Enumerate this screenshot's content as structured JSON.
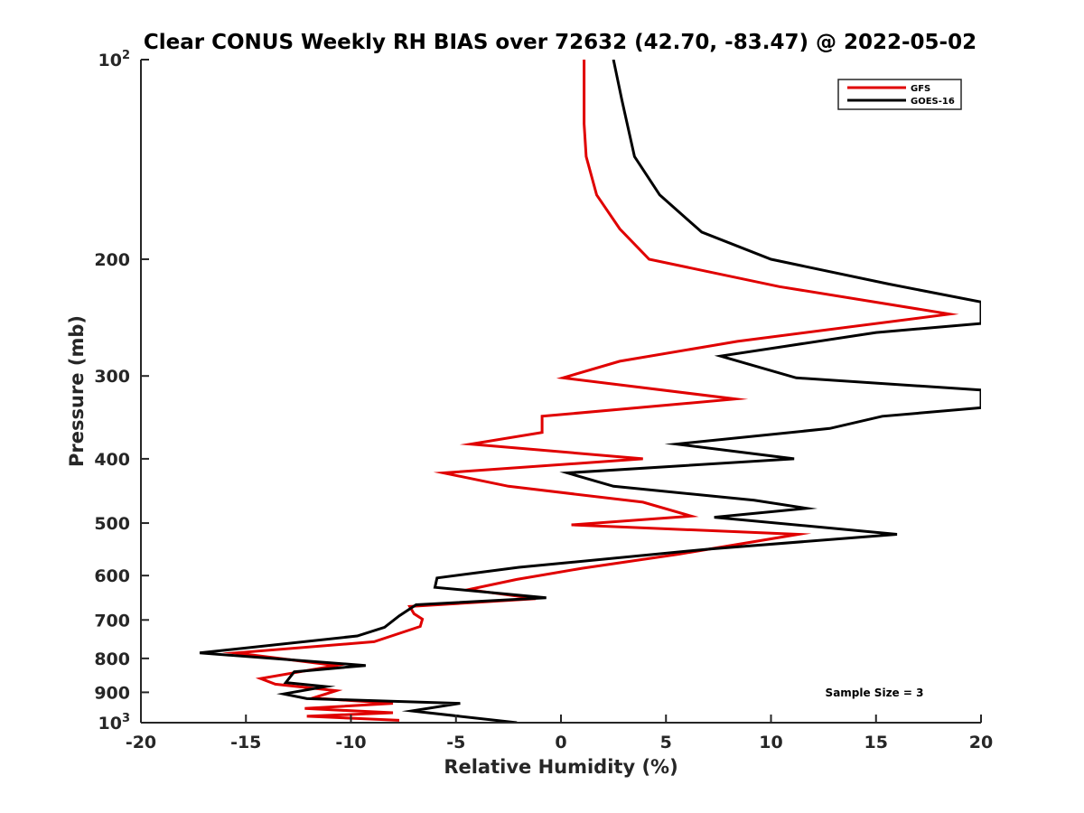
{
  "chart_data": {
    "type": "line",
    "title": "Clear CONUS Weekly RH BIAS over 72632 (42.70, -83.47) @ 2022-05-02",
    "xlabel": "Relative Humidity (%)",
    "ylabel": "Pressure (mb)",
    "xlim": [
      -20,
      20
    ],
    "ylim": [
      100,
      1000
    ],
    "y_scale": "log",
    "y_reversed": true,
    "x_ticks": [
      "-20",
      "-15",
      "-10",
      "-5",
      "0",
      "5",
      "10",
      "15",
      "20"
    ],
    "y_ticks": [
      {
        "value": 100,
        "base": "10",
        "exp": "2"
      },
      {
        "value": 200,
        "label": "200"
      },
      {
        "value": 300,
        "label": "300"
      },
      {
        "value": 400,
        "label": "400"
      },
      {
        "value": 500,
        "label": "500"
      },
      {
        "value": 600,
        "label": "600"
      },
      {
        "value": 700,
        "label": "700"
      },
      {
        "value": 800,
        "label": "800"
      },
      {
        "value": 900,
        "label": "900"
      },
      {
        "value": 1000,
        "base": "10",
        "exp": "3"
      }
    ],
    "legend_position": "top-right",
    "grid": false,
    "annotation": "Sample Size = 3",
    "series": [
      {
        "name": "GFS",
        "color": "#e00000",
        "points": [
          [
            1.1,
            100
          ],
          [
            1.1,
            115
          ],
          [
            1.1,
            125
          ],
          [
            1.2,
            140
          ],
          [
            1.7,
            160
          ],
          [
            2.8,
            180
          ],
          [
            4.2,
            200
          ],
          [
            10.4,
            220
          ],
          [
            18.5,
            242
          ],
          [
            8.4,
            266
          ],
          [
            2.8,
            285
          ],
          [
            0.1,
            302
          ],
          [
            8.3,
            325
          ],
          [
            -0.9,
            345
          ],
          [
            -0.9,
            365
          ],
          [
            -4.3,
            380
          ],
          [
            3.9,
            400
          ],
          [
            -5.6,
            420
          ],
          [
            -2.5,
            440
          ],
          [
            3.9,
            465
          ],
          [
            6.2,
            488
          ],
          [
            0.5,
            503
          ],
          [
            11.3,
            520
          ],
          [
            5.6,
            557
          ],
          [
            1.0,
            585
          ],
          [
            -2.1,
            608
          ],
          [
            -4.4,
            630
          ],
          [
            -1.2,
            650
          ],
          [
            -7.2,
            668
          ],
          [
            -7.0,
            685
          ],
          [
            -6.6,
            698
          ],
          [
            -6.7,
            716
          ],
          [
            -8.9,
            755
          ],
          [
            -15.5,
            785
          ],
          [
            -10.7,
            820
          ],
          [
            -14.3,
            858
          ],
          [
            -13.6,
            875
          ],
          [
            -10.7,
            895
          ],
          [
            -11.8,
            918
          ],
          [
            -8.0,
            935
          ],
          [
            -12.2,
            952
          ],
          [
            -8.0,
            966
          ],
          [
            -12.1,
            978
          ],
          [
            -7.7,
            992
          ]
        ]
      },
      {
        "name": "GOES-16",
        "color": "#000000",
        "points": [
          [
            2.5,
            100
          ],
          [
            2.9,
            115
          ],
          [
            3.5,
            140
          ],
          [
            4.7,
            160
          ],
          [
            6.7,
            182
          ],
          [
            10.0,
            200
          ],
          [
            15.6,
            218
          ],
          [
            20.0,
            232
          ],
          [
            20.0,
            250
          ],
          [
            15.0,
            258
          ],
          [
            7.6,
            280
          ],
          [
            11.2,
            302
          ],
          [
            20.0,
            315
          ],
          [
            20.0,
            335
          ],
          [
            15.3,
            345
          ],
          [
            12.8,
            360
          ],
          [
            5.5,
            380
          ],
          [
            11.1,
            400
          ],
          [
            0.3,
            420
          ],
          [
            2.5,
            440
          ],
          [
            9.2,
            462
          ],
          [
            11.7,
            475
          ],
          [
            7.3,
            490
          ],
          [
            16.0,
            520
          ],
          [
            7.1,
            547
          ],
          [
            -2.0,
            583
          ],
          [
            -5.9,
            605
          ],
          [
            -6.0,
            625
          ],
          [
            -0.7,
            648
          ],
          [
            -6.9,
            664
          ],
          [
            -7.7,
            690
          ],
          [
            -8.4,
            718
          ],
          [
            -9.7,
            740
          ],
          [
            -17.2,
            785
          ],
          [
            -9.3,
            820
          ],
          [
            -12.7,
            838
          ],
          [
            -13.1,
            870
          ],
          [
            -11.2,
            882
          ],
          [
            -13.2,
            905
          ],
          [
            -12.1,
            920
          ],
          [
            -4.8,
            935
          ],
          [
            -7.1,
            960
          ],
          [
            -2.1,
            1000
          ]
        ]
      }
    ]
  }
}
